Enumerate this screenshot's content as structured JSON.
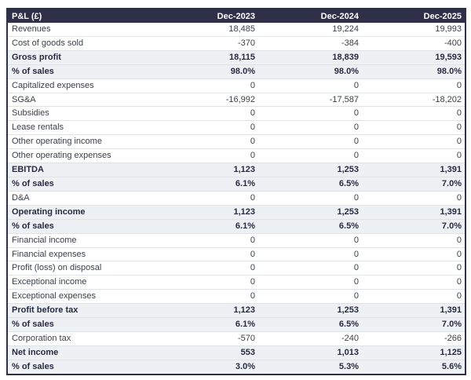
{
  "table": {
    "header": {
      "label": "P&L (£)",
      "columns": [
        "Dec-2023",
        "Dec-2024",
        "Dec-2025"
      ]
    },
    "rows": [
      {
        "label": "Revenues",
        "values": [
          "18,485",
          "19,224",
          "19,993"
        ],
        "emphasis": false
      },
      {
        "label": "Cost of goods sold",
        "values": [
          "-370",
          "-384",
          "-400"
        ],
        "emphasis": false
      },
      {
        "label": "Gross profit",
        "values": [
          "18,115",
          "18,839",
          "19,593"
        ],
        "emphasis": true
      },
      {
        "label": "% of sales",
        "values": [
          "98.0%",
          "98.0%",
          "98.0%"
        ],
        "emphasis": true
      },
      {
        "label": "Capitalized expenses",
        "values": [
          "0",
          "0",
          "0"
        ],
        "emphasis": false
      },
      {
        "label": "SG&A",
        "values": [
          "-16,992",
          "-17,587",
          "-18,202"
        ],
        "emphasis": false
      },
      {
        "label": "Subsidies",
        "values": [
          "0",
          "0",
          "0"
        ],
        "emphasis": false
      },
      {
        "label": "Lease rentals",
        "values": [
          "0",
          "0",
          "0"
        ],
        "emphasis": false
      },
      {
        "label": "Other operating income",
        "values": [
          "0",
          "0",
          "0"
        ],
        "emphasis": false
      },
      {
        "label": "Other operating expenses",
        "values": [
          "0",
          "0",
          "0"
        ],
        "emphasis": false
      },
      {
        "label": "EBITDA",
        "values": [
          "1,123",
          "1,253",
          "1,391"
        ],
        "emphasis": true
      },
      {
        "label": "% of sales",
        "values": [
          "6.1%",
          "6.5%",
          "7.0%"
        ],
        "emphasis": true
      },
      {
        "label": "D&A",
        "values": [
          "0",
          "0",
          "0"
        ],
        "emphasis": false
      },
      {
        "label": "Operating income",
        "values": [
          "1,123",
          "1,253",
          "1,391"
        ],
        "emphasis": true
      },
      {
        "label": "% of sales",
        "values": [
          "6.1%",
          "6.5%",
          "7.0%"
        ],
        "emphasis": true
      },
      {
        "label": "Financial income",
        "values": [
          "0",
          "0",
          "0"
        ],
        "emphasis": false
      },
      {
        "label": "Financial expenses",
        "values": [
          "0",
          "0",
          "0"
        ],
        "emphasis": false
      },
      {
        "label": "Profit (loss) on disposal",
        "values": [
          "0",
          "0",
          "0"
        ],
        "emphasis": false
      },
      {
        "label": "Exceptional income",
        "values": [
          "0",
          "0",
          "0"
        ],
        "emphasis": false
      },
      {
        "label": "Exceptional expenses",
        "values": [
          "0",
          "0",
          "0"
        ],
        "emphasis": false
      },
      {
        "label": "Profit before tax",
        "values": [
          "1,123",
          "1,253",
          "1,391"
        ],
        "emphasis": true
      },
      {
        "label": "% of sales",
        "values": [
          "6.1%",
          "6.5%",
          "7.0%"
        ],
        "emphasis": true
      },
      {
        "label": "Corporation tax",
        "values": [
          "-570",
          "-240",
          "-266"
        ],
        "emphasis": false
      },
      {
        "label": "Net income",
        "values": [
          "553",
          "1,013",
          "1,125"
        ],
        "emphasis": true
      },
      {
        "label": "% of sales",
        "values": [
          "3.0%",
          "5.3%",
          "5.6%"
        ],
        "emphasis": true
      }
    ],
    "colors": {
      "header_bg": "#2d3047",
      "header_text": "#ffffff",
      "emphasis_bg": "#eef1f4",
      "emphasis_text": "#272b42",
      "body_text": "#3b3f48",
      "row_border": "#dfe3e8",
      "outer_border": "#2d3047"
    }
  },
  "chart_data": {
    "type": "table",
    "title": "P&L (£)",
    "columns": [
      "P&L (£)",
      "Dec-2023",
      "Dec-2024",
      "Dec-2025"
    ],
    "rows": [
      [
        "Revenues",
        18485,
        19224,
        19993
      ],
      [
        "Cost of goods sold",
        -370,
        -384,
        -400
      ],
      [
        "Gross profit",
        18115,
        18839,
        19593
      ],
      [
        "% of sales",
        98.0,
        98.0,
        98.0
      ],
      [
        "Capitalized expenses",
        0,
        0,
        0
      ],
      [
        "SG&A",
        -16992,
        -17587,
        -18202
      ],
      [
        "Subsidies",
        0,
        0,
        0
      ],
      [
        "Lease rentals",
        0,
        0,
        0
      ],
      [
        "Other operating income",
        0,
        0,
        0
      ],
      [
        "Other operating expenses",
        0,
        0,
        0
      ],
      [
        "EBITDA",
        1123,
        1253,
        1391
      ],
      [
        "% of sales",
        6.1,
        6.5,
        7.0
      ],
      [
        "D&A",
        0,
        0,
        0
      ],
      [
        "Operating income",
        1123,
        1253,
        1391
      ],
      [
        "% of sales",
        6.1,
        6.5,
        7.0
      ],
      [
        "Financial income",
        0,
        0,
        0
      ],
      [
        "Financial expenses",
        0,
        0,
        0
      ],
      [
        "Profit (loss) on disposal",
        0,
        0,
        0
      ],
      [
        "Exceptional income",
        0,
        0,
        0
      ],
      [
        "Exceptional expenses",
        0,
        0,
        0
      ],
      [
        "Profit before tax",
        1123,
        1253,
        1391
      ],
      [
        "% of sales",
        6.1,
        6.5,
        7.0
      ],
      [
        "Corporation tax",
        -570,
        -240,
        -266
      ],
      [
        "Net income",
        553,
        1013,
        1125
      ],
      [
        "% of sales",
        3.0,
        5.3,
        5.6
      ]
    ]
  }
}
